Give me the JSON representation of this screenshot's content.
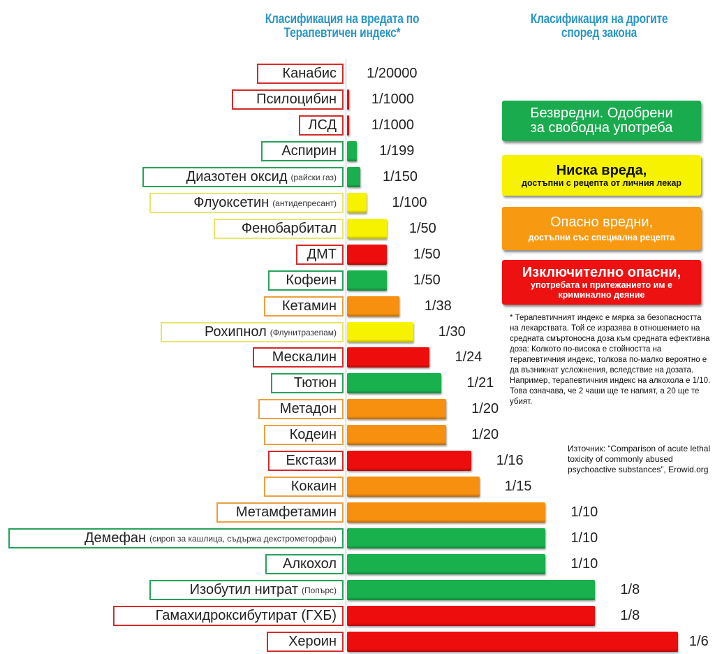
{
  "headers": {
    "left_line1": "Класификация  на вредата по",
    "left_line2": "Терапевтичен индекс*",
    "right_line1": "Класификация на дрогите",
    "right_line2": "според закона"
  },
  "legend": [
    {
      "key": "green",
      "title": "Безвредни. Одобрени",
      "title2": "за свободна употреба",
      "subtitle": "",
      "color": "#1aab4f",
      "text_color": "#ffffff"
    },
    {
      "key": "yellow",
      "title": "Ниска вреда,",
      "title2": "",
      "subtitle": "достъпни с рецепта от личния лекар",
      "color": "#f7f200",
      "text_color": "#111111"
    },
    {
      "key": "orange",
      "title": "Опасно вредни,",
      "title2": "",
      "subtitle": "достъпни със специална рецепта",
      "color": "#f79a12",
      "text_color": "#ffffff"
    },
    {
      "key": "red",
      "title": "Изключително опасни,",
      "title2": "",
      "subtitle": "употребата и притежанието им е криминално деяние",
      "color": "#ee1111",
      "text_color": "#ffffff"
    }
  ],
  "colors": {
    "green": {
      "fill": "#19b04e",
      "border": "#26a25a"
    },
    "yellow": {
      "fill": "#f6f200",
      "border": "#e8e66a"
    },
    "orange": {
      "fill": "#f7900f",
      "border": "#eba040"
    },
    "red": {
      "fill": "#ee0d0d",
      "border": "#d52a2a"
    }
  },
  "note": "* Терапевтичният индекс е мярка за безопасността на лекарствата. Той се изразява в отношението на средната смъртоносна доза към средната ефективна доза: Колкото по-висока е стойността на терапевтичния индекс, толкова по-малко вероятно е да възникнат усложнения, вследствие на дозата. Например, терапевтичния индекс на алкохола е 1/10. Това означава, че 2 чаши ще те напият, а 20 ще те убият.",
  "source": "Източник: “Comparison of acute lethal toxicity of commonly abused psychoactive substances”, Erowid.org",
  "chart_data": {
    "type": "bar",
    "orientation": "horizontal",
    "title": "Класификация на вредата по Терапевтичен индекс*",
    "xlabel": "",
    "ylabel": "",
    "grid": false,
    "legend_position": "right",
    "value_scale": "bar length proportional to 1/TI",
    "xlim": [
      0,
      0.1667
    ],
    "categories": [
      {
        "name": "Канабис",
        "note": "",
        "label": "1/20000",
        "ratio": 5e-05,
        "class": "red"
      },
      {
        "name": "Псилоцибин",
        "note": "",
        "label": "1/1000",
        "ratio": 0.001,
        "class": "red"
      },
      {
        "name": "ЛСД",
        "note": "",
        "label": "1/1000",
        "ratio": 0.001,
        "class": "red"
      },
      {
        "name": "Аспирин",
        "note": "",
        "label": "1/199",
        "ratio": 0.005025,
        "class": "green"
      },
      {
        "name": "Диазотен оксид",
        "note": "(райски газ)",
        "label": "1/150",
        "ratio": 0.006667,
        "class": "green"
      },
      {
        "name": "Флуоксетин",
        "note": "(антидепресант)",
        "label": "1/100",
        "ratio": 0.01,
        "class": "yellow"
      },
      {
        "name": "Фенобарбитал",
        "note": "",
        "label": "1/50",
        "ratio": 0.02,
        "class": "yellow"
      },
      {
        "name": "ДМТ",
        "note": "",
        "label": "1/50",
        "ratio": 0.02,
        "class": "red"
      },
      {
        "name": "Кофеин",
        "note": "",
        "label": "1/50",
        "ratio": 0.02,
        "class": "green"
      },
      {
        "name": "Кетамин",
        "note": "",
        "label": "1/38",
        "ratio": 0.026316,
        "class": "orange"
      },
      {
        "name": "Рохипнол",
        "note": "(Флунитразепам)",
        "label": "1/30",
        "ratio": 0.033333,
        "class": "yellow"
      },
      {
        "name": "Мескалин",
        "note": "",
        "label": "1/24",
        "ratio": 0.041667,
        "class": "red"
      },
      {
        "name": "Тютюн",
        "note": "",
        "label": "1/21",
        "ratio": 0.047619,
        "class": "green"
      },
      {
        "name": "Метадон",
        "note": "",
        "label": "1/20",
        "ratio": 0.05,
        "class": "orange"
      },
      {
        "name": "Кодеин",
        "note": "",
        "label": "1/20",
        "ratio": 0.05,
        "class": "orange"
      },
      {
        "name": "Екстази",
        "note": "",
        "label": "1/16",
        "ratio": 0.0625,
        "class": "red"
      },
      {
        "name": "Кокаин",
        "note": "",
        "label": "1/15",
        "ratio": 0.066667,
        "class": "orange"
      },
      {
        "name": "Метамфетамин",
        "note": "",
        "label": "1/10",
        "ratio": 0.1,
        "class": "orange"
      },
      {
        "name": "Демефан",
        "note": "(сироп за кашлица, съдържа декстрометорфан)",
        "label": "1/10",
        "ratio": 0.1,
        "class": "green"
      },
      {
        "name": "Алкохол",
        "note": "",
        "label": "1/10",
        "ratio": 0.1,
        "class": "green"
      },
      {
        "name": "Изобутил нитрат",
        "note": "(Попърс)",
        "label": "1/8",
        "ratio": 0.125,
        "class": "green"
      },
      {
        "name": "Гамахидроксибутират (ГХБ)",
        "note": "",
        "label": "1/8",
        "ratio": 0.125,
        "class": "red"
      },
      {
        "name": "Хероин",
        "note": "",
        "label": "1/6",
        "ratio": 0.166667,
        "class": "red"
      }
    ]
  }
}
